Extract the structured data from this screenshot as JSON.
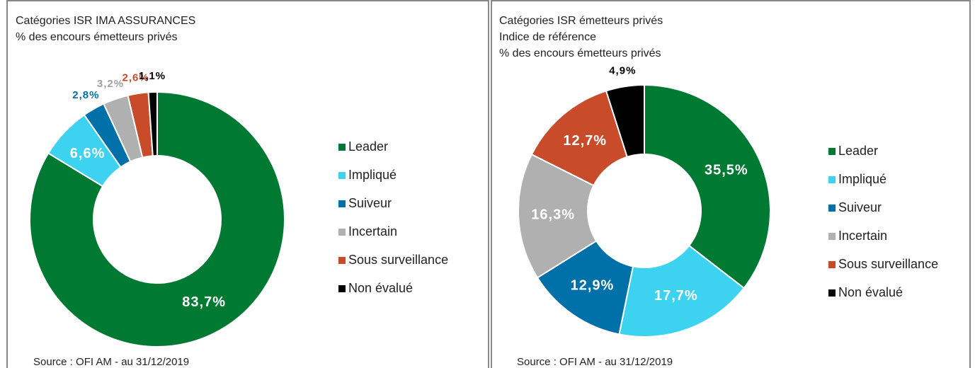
{
  "chart_data": [
    {
      "type": "pie",
      "title": "Catégories ISR IMA ASSURANCES",
      "subtitle": [
        "% des encours émetteurs  privés"
      ],
      "categories": [
        "Leader",
        "Impliqué",
        "Suiveur",
        "Incertain",
        "Sous surveillance",
        "Non évalué"
      ],
      "values": [
        83.7,
        6.6,
        2.8,
        3.2,
        2.6,
        1.1
      ],
      "value_labels": [
        "83,7%",
        "6,6%",
        "2,8%",
        "3,2%",
        "2,6%",
        "1,1%"
      ],
      "colors": [
        "#007a33",
        "#3dd3f0",
        "#0070a8",
        "#b0b0b0",
        "#c84b2a",
        "#000000"
      ],
      "source": "Source : OFI AM - au 31/12/2019"
    },
    {
      "type": "pie",
      "title": "Catégories ISR émetteurs privés",
      "subtitle": [
        "Indice de référence",
        "% des encours émetteurs privés"
      ],
      "categories": [
        "Leader",
        "Impliqué",
        "Suiveur",
        "Incertain",
        "Sous surveillance",
        "Non évalué"
      ],
      "values": [
        35.5,
        17.7,
        12.9,
        16.3,
        12.7,
        4.9
      ],
      "value_labels": [
        "35,5%",
        "17,7%",
        "12,9%",
        "16,3%",
        "12,7%",
        "4,9%"
      ],
      "colors": [
        "#007a33",
        "#3dd3f0",
        "#0070a8",
        "#b0b0b0",
        "#c84b2a",
        "#000000"
      ],
      "source": "Source : OFI AM - au 31/12/2019"
    }
  ]
}
